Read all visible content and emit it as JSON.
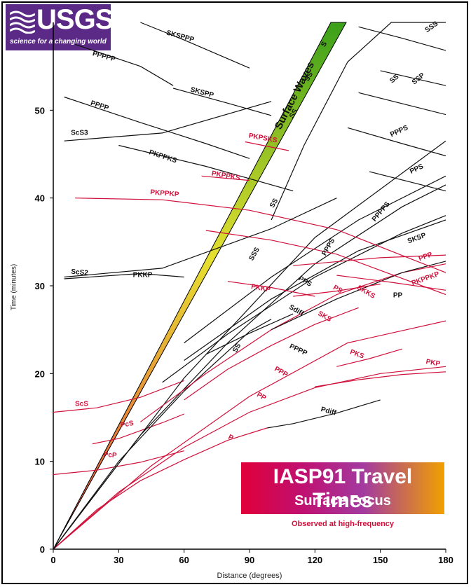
{
  "logo": {
    "title": "USGS",
    "tagline": "science for a changing world"
  },
  "legend_box": {
    "title": "IASP91 Travel Times",
    "subtitle": "Surface Focus",
    "note": "Observed at high-frequency"
  },
  "colors": {
    "crust_phases": "#d0103a",
    "core_phases": "#111111",
    "surface_band_top": "#3aa01a",
    "surface_band_mid": "#e6e030",
    "surface_band_bottom": "#e84040",
    "brand": "#5b2a86"
  },
  "chart_data": {
    "type": "line",
    "title": "IASP91 Travel Times",
    "subtitle": "Surface Focus",
    "xlabel": "Distance (degrees)",
    "ylabel": "Time (minutes)",
    "xlim": [
      0,
      180
    ],
    "ylim": [
      0,
      60
    ],
    "xticks": [
      "0",
      "30",
      "60",
      "90",
      "120",
      "150",
      "180"
    ],
    "yticks": [
      "0",
      "10",
      "20",
      "30",
      "40",
      "50"
    ],
    "grid": false,
    "surface_waves": {
      "label": "Surface Waves",
      "x": [
        0,
        140
      ],
      "y_lower": [
        0,
        60
      ],
      "y_upper": [
        0,
        60
      ]
    },
    "series": [
      {
        "name": "P",
        "color": "red",
        "x": [
          0,
          20,
          40,
          60,
          80,
          98
        ],
        "y": [
          0,
          4.5,
          7.8,
          10.2,
          12.4,
          13.8
        ]
      },
      {
        "name": "Pdiff",
        "color": "black",
        "x": [
          98,
          110,
          130,
          150
        ],
        "y": [
          13.8,
          14.3,
          15.5,
          17.0
        ]
      },
      {
        "name": "PP",
        "color": "red",
        "x": [
          0,
          30,
          60,
          90,
          120,
          150,
          180
        ],
        "y": [
          0,
          6.5,
          11.6,
          15.6,
          18.4,
          20.0,
          20.8
        ]
      },
      {
        "name": "PPP",
        "color": "red",
        "x": [
          0,
          45,
          90,
          135,
          180
        ],
        "y": [
          0,
          9.5,
          17.4,
          23.5,
          26.0
        ]
      },
      {
        "name": "PcP",
        "color": "red",
        "x": [
          0,
          20,
          40,
          60
        ],
        "y": [
          8.5,
          9.0,
          9.9,
          11.2
        ]
      },
      {
        "name": "PcS",
        "color": "red",
        "x": [
          18,
          30,
          50,
          60
        ],
        "y": [
          12.0,
          12.6,
          14.4,
          15.4
        ]
      },
      {
        "name": "ScS",
        "color": "red",
        "x": [
          0,
          20,
          40,
          60
        ],
        "y": [
          15.6,
          16.1,
          17.3,
          19.2
        ]
      },
      {
        "name": "PKS",
        "color": "red",
        "x": [
          130,
          145,
          160
        ],
        "y": [
          20.8,
          21.7,
          22.8
        ]
      },
      {
        "name": "PKP",
        "color": "red",
        "x": [
          120,
          140,
          160,
          180
        ],
        "y": [
          18.5,
          19.3,
          19.9,
          20.2
        ]
      },
      {
        "name": "SKS",
        "color": "red",
        "x": [
          60,
          80,
          100,
          120,
          140
        ],
        "y": [
          17.0,
          20.5,
          23.2,
          25.6,
          27.5
        ]
      },
      {
        "name": "Sdiff",
        "color": "black",
        "x": [
          70,
          90,
          110
        ],
        "y": [
          22.2,
          24.6,
          26.8
        ]
      },
      {
        "name": "S",
        "color": "black",
        "x": [
          0,
          30,
          60,
          90,
          100
        ],
        "y": [
          0,
          10.0,
          18.0,
          24.8,
          26.2
        ]
      },
      {
        "name": "SS",
        "color": "black",
        "x": [
          0,
          40,
          80,
          120,
          160,
          180
        ],
        "y": [
          0,
          13.0,
          23.5,
          32.5,
          39.0,
          41.5
        ]
      },
      {
        "name": "SSS",
        "color": "black",
        "x": [
          0,
          60,
          120,
          180
        ],
        "y": [
          0,
          19.5,
          35.5,
          46.5
        ]
      },
      {
        "name": "PS",
        "color": "red",
        "x": [
          40,
          70,
          100,
          130,
          160,
          180
        ],
        "y": [
          14.5,
          20.0,
          25.0,
          29.0,
          31.5,
          32.5
        ]
      },
      {
        "name": "PPS",
        "color": "black",
        "x": [
          50,
          80,
          120,
          160,
          180
        ],
        "y": [
          19.0,
          24.5,
          31.0,
          36.0,
          38.0
        ]
      },
      {
        "name": "PPPS",
        "color": "black",
        "x": [
          60,
          100,
          140,
          180
        ],
        "y": [
          23.5,
          31.0,
          37.5,
          42.5
        ]
      },
      {
        "name": "PPPP",
        "color": "black",
        "x": [
          60,
          100,
          140,
          180
        ],
        "y": [
          21.5,
          28.5,
          34.0,
          37.5
        ]
      },
      {
        "name": "SKP",
        "color": "black",
        "x": [
          100,
          130,
          160,
          180
        ],
        "y": [
          25.0,
          28.5,
          31.5,
          32.8
        ]
      },
      {
        "name": "SKKS",
        "color": "red",
        "x": [
          110,
          130,
          150
        ],
        "y": [
          28.8,
          29.4,
          30.2
        ]
      },
      {
        "name": "PPP",
        "color": "red",
        "x": [
          110,
          150,
          180
        ],
        "y": [
          32.3,
          33.2,
          33.5
        ]
      },
      {
        "name": "PKPPKP",
        "color": "red",
        "x": [
          130,
          155,
          180
        ],
        "y": [
          31.2,
          30.4,
          29.5
        ]
      },
      {
        "name": "PKKP",
        "color": "red",
        "x": [
          80,
          100,
          120
        ],
        "y": [
          30.5,
          29.8,
          28.8
        ]
      },
      {
        "name": "PKPPKP",
        "color": "red",
        "x": [
          10,
          50,
          90,
          130,
          180
        ],
        "y": [
          40.0,
          39.8,
          38.6,
          36.4,
          31.5
        ]
      },
      {
        "name": "PKPPKS",
        "color": "red",
        "x": [
          70,
          100,
          130,
          180
        ],
        "y": [
          36.3,
          35.2,
          33.6,
          29.0
        ]
      },
      {
        "name": "PKPPKS",
        "color": "red",
        "x": [
          68,
          90
        ],
        "y": [
          42.5,
          42.0
        ]
      },
      {
        "name": "PKPSKS",
        "color": "red",
        "x": [
          88,
          108
        ],
        "y": [
          46.4,
          45.4
        ]
      },
      {
        "name": "PKKP",
        "color": "black",
        "x": [
          5,
          40,
          60
        ],
        "y": [
          30.8,
          31.4,
          31.0
        ]
      },
      {
        "name": "PKPPKS",
        "color": "black",
        "x": [
          30,
          70,
          110
        ],
        "y": [
          46.0,
          43.6,
          40.8
        ]
      },
      {
        "name": "ScS2",
        "color": "black",
        "x": [
          5,
          50,
          100,
          130
        ],
        "y": [
          31.0,
          32.0,
          36.5,
          40.0
        ]
      },
      {
        "name": "ScS3",
        "color": "black",
        "x": [
          5,
          50,
          100
        ],
        "y": [
          46.5,
          47.4,
          51.0
        ]
      },
      {
        "name": "PPPP",
        "color": "black",
        "x": [
          5,
          40,
          70,
          90
        ],
        "y": [
          51.5,
          48.6,
          46.2,
          44.5
        ]
      },
      {
        "name": "PPPPP",
        "color": "black",
        "x": [
          10,
          40,
          55
        ],
        "y": [
          57.5,
          55.0,
          52.8
        ]
      },
      {
        "name": "SKSPP",
        "color": "black",
        "x": [
          55,
          80,
          100
        ],
        "y": [
          52.5,
          50.8,
          49.4
        ]
      },
      {
        "name": "SKSPPP",
        "color": "black",
        "x": [
          40,
          60,
          90
        ],
        "y": [
          60.0,
          58.0,
          54.8
        ]
      },
      {
        "name": "SSS",
        "color": "black",
        "x": [
          140,
          160,
          180
        ],
        "y": [
          59.5,
          58.2,
          56.8
        ]
      },
      {
        "name": "SSP",
        "color": "black",
        "x": [
          150,
          180
        ],
        "y": [
          54.5,
          52.8
        ]
      },
      {
        "name": "PPPS",
        "color": "black",
        "x": [
          135,
          160,
          180
        ],
        "y": [
          48.0,
          46.2,
          44.8
        ]
      },
      {
        "name": "PPS",
        "color": "black",
        "x": [
          145,
          180
        ],
        "y": [
          43.0,
          40.8
        ]
      },
      {
        "name": "SS",
        "color": "black",
        "x": [
          140,
          180
        ],
        "y": [
          52.0,
          49.5
        ]
      },
      {
        "name": "S",
        "color": "black",
        "x": [
          100,
          115,
          135,
          155,
          180
        ],
        "y": [
          37.5,
          46.0,
          55.5,
          60.0,
          60.0
        ]
      }
    ],
    "labels": [
      {
        "text": "SKSPPP",
        "x": 58,
        "y": 58.2,
        "color": "black",
        "angle": 15
      },
      {
        "text": "PPPPP",
        "x": 23,
        "y": 55.9,
        "color": "black",
        "angle": 15
      },
      {
        "text": "SKSPP",
        "x": 68,
        "y": 51.8,
        "color": "black",
        "angle": 15
      },
      {
        "text": "PPPP",
        "x": 21,
        "y": 50.3,
        "color": "black",
        "angle": 18
      },
      {
        "text": "ScS3",
        "x": 12,
        "y": 47.2,
        "color": "black",
        "angle": 0
      },
      {
        "text": "PKPPKS",
        "x": 50,
        "y": 44.5,
        "color": "black",
        "angle": 18
      },
      {
        "text": "PKPSKS",
        "x": 96,
        "y": 46.6,
        "color": "red",
        "angle": 10
      },
      {
        "text": "PKPPKS",
        "x": 79,
        "y": 42.3,
        "color": "red",
        "angle": 10
      },
      {
        "text": "PKPPKP",
        "x": 51,
        "y": 40.3,
        "color": "red",
        "angle": 5
      },
      {
        "text": "ScS2",
        "x": 12,
        "y": 31.3,
        "color": "black",
        "angle": 5
      },
      {
        "text": "PKKP",
        "x": 41,
        "y": 31.0,
        "color": "black",
        "angle": 0
      },
      {
        "text": "PKKP",
        "x": 95,
        "y": 29.5,
        "color": "red",
        "angle": 10
      },
      {
        "text": "PPS",
        "x": 115,
        "y": 30.3,
        "color": "black",
        "angle": 30
      },
      {
        "text": "PS",
        "x": 130,
        "y": 29.4,
        "color": "red",
        "angle": 30
      },
      {
        "text": "Sdiff",
        "x": 111,
        "y": 27.0,
        "color": "black",
        "angle": 30
      },
      {
        "text": "SKS",
        "x": 124,
        "y": 26.3,
        "color": "red",
        "angle": 30
      },
      {
        "text": "SKKS",
        "x": 143,
        "y": 29.1,
        "color": "red",
        "angle": 30
      },
      {
        "text": "PP",
        "x": 158,
        "y": 28.7,
        "color": "black",
        "angle": 0
      },
      {
        "text": "PPPP",
        "x": 112,
        "y": 22.5,
        "color": "black",
        "angle": 25
      },
      {
        "text": "PKS",
        "x": 139,
        "y": 22.0,
        "color": "red",
        "angle": 20
      },
      {
        "text": "PPP",
        "x": 104,
        "y": 20.0,
        "color": "red",
        "angle": 30
      },
      {
        "text": "PP",
        "x": 95,
        "y": 17.2,
        "color": "red",
        "angle": 30
      },
      {
        "text": "PKP",
        "x": 174,
        "y": 21.0,
        "color": "red",
        "angle": 10
      },
      {
        "text": "Pdiff",
        "x": 126,
        "y": 15.5,
        "color": "black",
        "angle": 15
      },
      {
        "text": "P",
        "x": 81,
        "y": 12.5,
        "color": "red",
        "angle": 25
      },
      {
        "text": "ScS",
        "x": 13,
        "y": 16.3,
        "color": "red",
        "angle": 0
      },
      {
        "text": "PcS",
        "x": 34,
        "y": 14.0,
        "color": "red",
        "angle": -10
      },
      {
        "text": "PcP",
        "x": 26,
        "y": 10.5,
        "color": "red",
        "angle": 5
      },
      {
        "text": "SS",
        "x": 85,
        "y": 22.8,
        "color": "black",
        "angle": -60
      },
      {
        "text": "SSS",
        "x": 93,
        "y": 33.5,
        "color": "black",
        "angle": -60
      },
      {
        "text": "SS",
        "x": 102,
        "y": 39.3,
        "color": "black",
        "angle": -60
      },
      {
        "text": "SS",
        "x": 111,
        "y": 49.5,
        "color": "black",
        "angle": -60
      },
      {
        "text": "SS",
        "x": 118,
        "y": 53.7,
        "color": "black",
        "angle": -60
      },
      {
        "text": "S",
        "x": 125,
        "y": 57.4,
        "color": "black",
        "angle": -60
      },
      {
        "text": "SSS",
        "x": 174,
        "y": 59.3,
        "color": "black",
        "angle": -35
      },
      {
        "text": "SS",
        "x": 157,
        "y": 53.4,
        "color": "black",
        "angle": -40
      },
      {
        "text": "SSP",
        "x": 168,
        "y": 53.4,
        "color": "black",
        "angle": -40
      },
      {
        "text": "PPPS",
        "x": 159,
        "y": 47.4,
        "color": "black",
        "angle": -25
      },
      {
        "text": "PPS",
        "x": 167,
        "y": 43.1,
        "color": "black",
        "angle": -25
      },
      {
        "text": "PPPPS",
        "x": 151,
        "y": 38.3,
        "color": "black",
        "angle": -50
      },
      {
        "text": "PPPS",
        "x": 127,
        "y": 34.3,
        "color": "black",
        "angle": -60
      },
      {
        "text": "SKSP",
        "x": 167,
        "y": 35.2,
        "color": "black",
        "angle": -20
      },
      {
        "text": "PPP",
        "x": 171,
        "y": 33.1,
        "color": "red",
        "angle": -20
      },
      {
        "text": "PKPPKP",
        "x": 171,
        "y": 30.6,
        "color": "red",
        "angle": -20
      },
      {
        "text": "Surface Waves",
        "x": 112,
        "y": 51.5,
        "color": "black",
        "angle": -63
      }
    ]
  }
}
